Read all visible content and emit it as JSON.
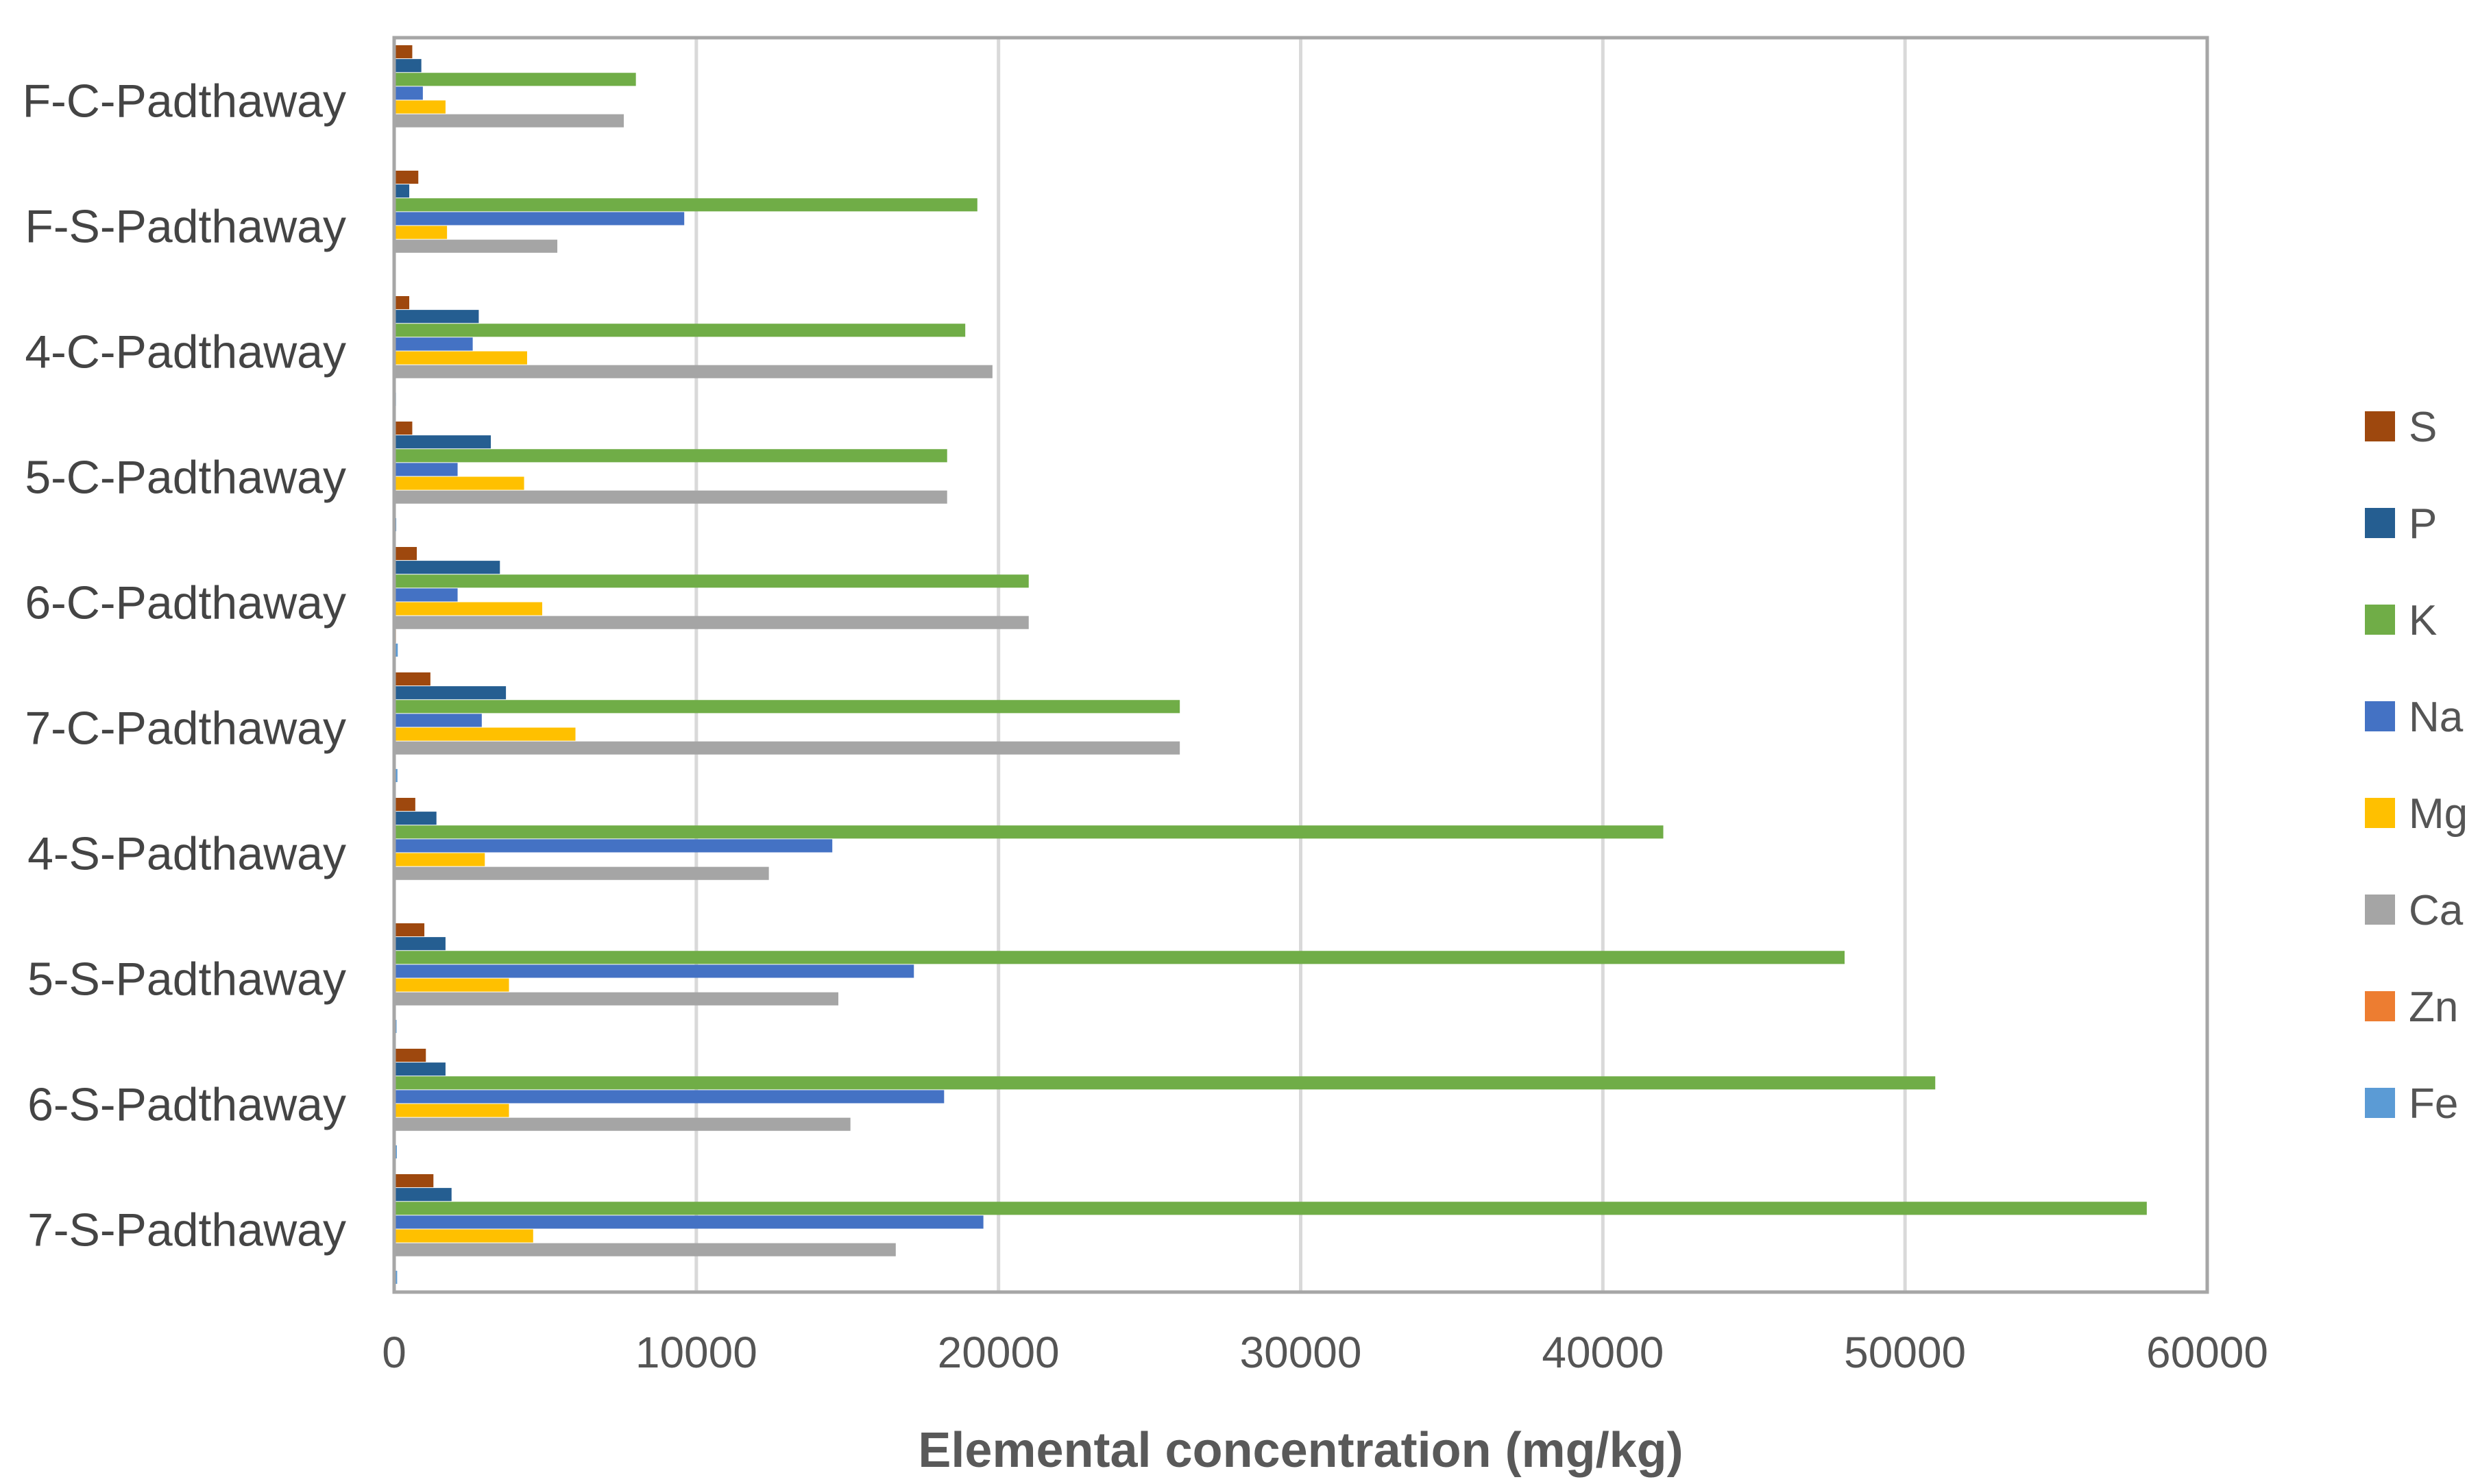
{
  "chart_data": {
    "type": "bar",
    "orientation": "horizontal",
    "title": "",
    "xlabel": "Elemental concentration (mg/kg)",
    "ylabel": "",
    "xlim": [
      0,
      60000
    ],
    "x_ticks": [
      "0",
      "10000",
      "20000",
      "30000",
      "40000",
      "50000",
      "60000"
    ],
    "grid": "vertical",
    "legend_position": "right",
    "categories": [
      "F-C-Padthaway",
      "F-S-Padthaway",
      "4-C-Padthaway",
      "5-C-Padthaway",
      "6-C-Padthaway",
      "7-C-Padthaway",
      "4-S-Padthaway",
      "5-S-Padthaway",
      "6-S-Padthaway",
      "7-S-Padthaway"
    ],
    "series": [
      {
        "name": "S",
        "color": "#9E480E",
        "values": [
          600,
          800,
          500,
          600,
          750,
          1200,
          700,
          1000,
          1050,
          1300
        ]
      },
      {
        "name": "P",
        "color": "#255E91",
        "values": [
          900,
          500,
          2800,
          3200,
          3500,
          3700,
          1400,
          1700,
          1700,
          1900
        ]
      },
      {
        "name": "K",
        "color": "#70AD47",
        "values": [
          8000,
          19300,
          18900,
          18300,
          21000,
          26000,
          42000,
          48000,
          51000,
          58000
        ]
      },
      {
        "name": "Na",
        "color": "#4472C4",
        "values": [
          950,
          9600,
          2600,
          2100,
          2100,
          2900,
          14500,
          17200,
          18200,
          19500
        ]
      },
      {
        "name": "Mg",
        "color": "#FFC000",
        "values": [
          1700,
          1750,
          4400,
          4300,
          4900,
          6000,
          3000,
          3800,
          3800,
          4600
        ]
      },
      {
        "name": "Ca",
        "color": "#A5A5A5",
        "values": [
          7600,
          5400,
          19800,
          18300,
          21000,
          26000,
          12400,
          14700,
          15100,
          16600
        ]
      },
      {
        "name": "Zn",
        "color": "#ED7D31",
        "values": [
          20,
          20,
          40,
          50,
          60,
          50,
          20,
          30,
          30,
          30
        ]
      },
      {
        "name": "Fe",
        "color": "#5B9BD5",
        "values": [
          30,
          40,
          60,
          70,
          120,
          110,
          40,
          80,
          90,
          100
        ]
      }
    ]
  }
}
